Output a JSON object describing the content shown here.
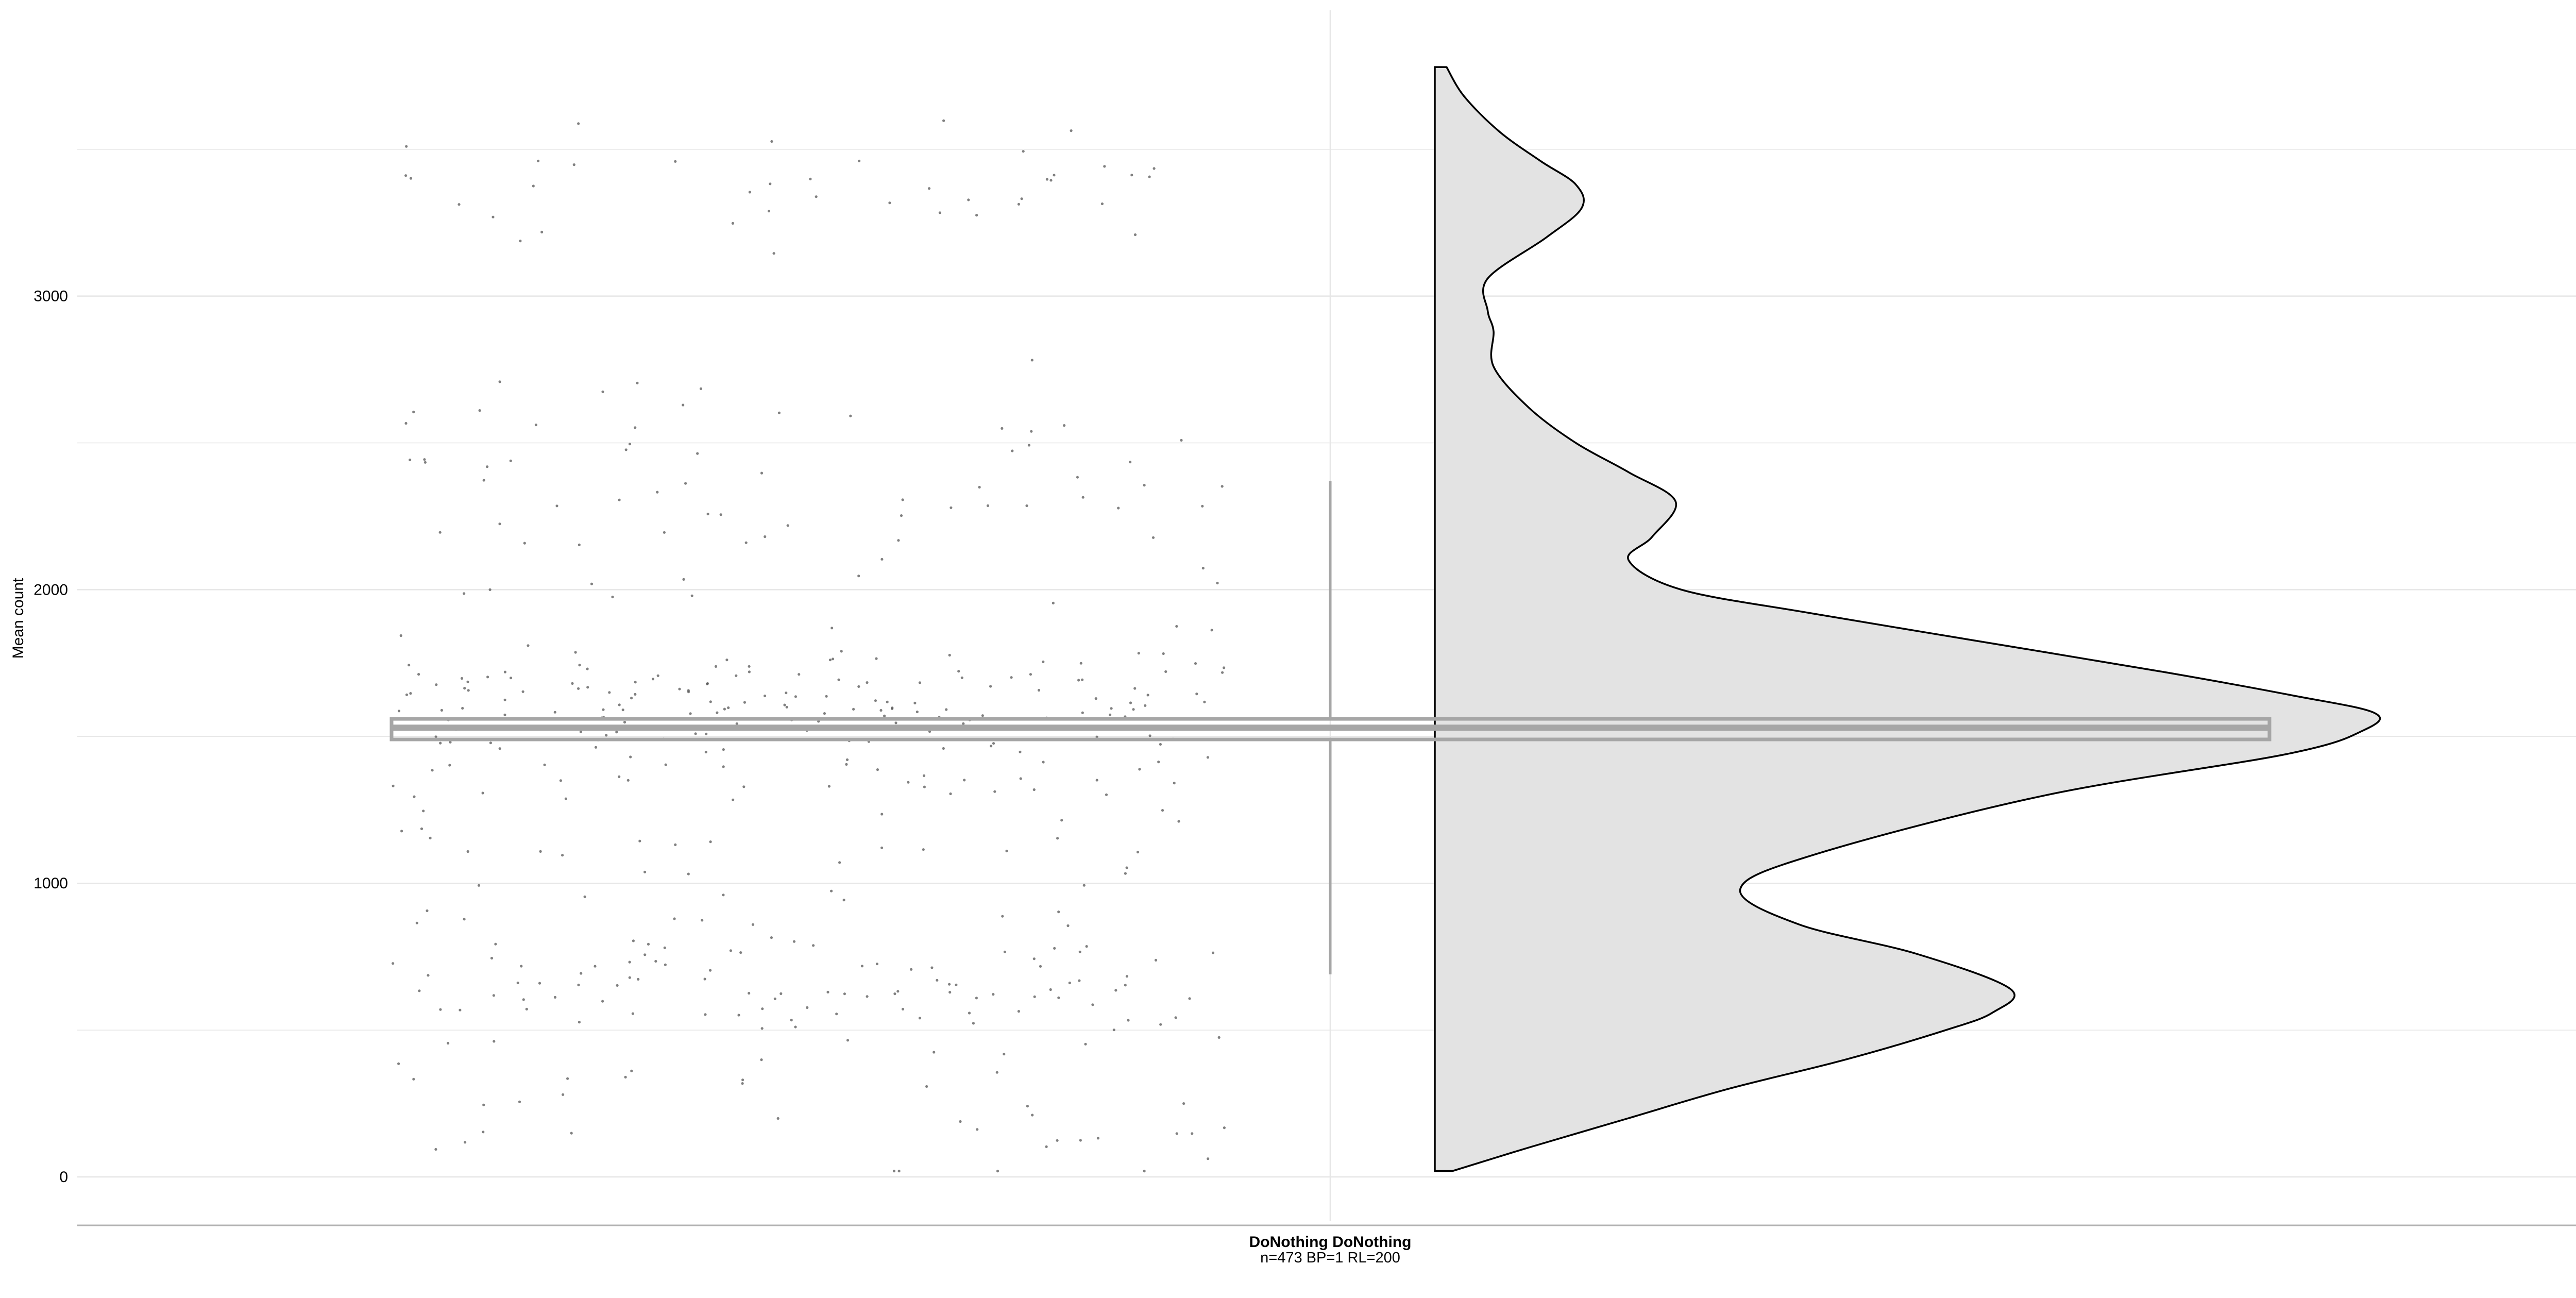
{
  "chart_data": {
    "type": "violin",
    "title": "",
    "xlabel": "",
    "ylabel": "Mean count",
    "ylim": [
      -170,
      3950
    ],
    "y_ticks": [
      0,
      1000,
      2000,
      3000
    ],
    "y_minor_ticks": [
      500,
      1500,
      2500,
      3500
    ],
    "category": {
      "name": "DoNothing DoNothing",
      "subtitle": "n=473 BP=1 RL=200"
    },
    "boxplot": {
      "q1": 1490,
      "median": 1530,
      "q3": 1560,
      "whisker_low": 690,
      "whisker_high": 2370
    },
    "density": {
      "y": [
        20,
        100,
        200,
        300,
        400,
        500,
        560,
        640,
        760,
        860,
        980,
        1100,
        1300,
        1440,
        1520,
        1580,
        1640,
        1720,
        1820,
        1920,
        2000,
        2100,
        2180,
        2300,
        2400,
        2500,
        2620,
        2760,
        2880,
        2950,
        3060,
        3200,
        3300,
        3380,
        3460,
        3560,
        3680,
        3780
      ],
      "width": [
        0.03,
        0.16,
        0.33,
        0.5,
        0.7,
        0.87,
        0.95,
        0.98,
        0.82,
        0.62,
        0.52,
        0.65,
        1.04,
        1.45,
        1.58,
        1.6,
        1.46,
        1.24,
        0.94,
        0.64,
        0.42,
        0.33,
        0.37,
        0.41,
        0.33,
        0.24,
        0.16,
        0.1,
        0.1,
        0.09,
        0.09,
        0.19,
        0.25,
        0.24,
        0.18,
        0.11,
        0.05,
        0.02
      ]
    },
    "points": {
      "count": 473,
      "clusters": [
        {
          "center": 1610,
          "spread": 110,
          "n": 150
        },
        {
          "center": 1330,
          "spread": 150,
          "n": 60
        },
        {
          "center": 650,
          "spread": 110,
          "n": 95
        },
        {
          "center": 2420,
          "spread": 170,
          "n": 55
        },
        {
          "center": 3370,
          "spread": 120,
          "n": 40
        },
        {
          "center": 250,
          "spread": 150,
          "n": 38
        },
        {
          "center": 950,
          "spread": 140,
          "n": 20
        },
        {
          "center": 2000,
          "spread": 160,
          "n": 15
        }
      ]
    },
    "colors": {
      "violin_fill": "#e3e3e3",
      "violin_stroke": "#000000",
      "box_stroke": "#a6a6a6",
      "point": "#555555",
      "grid": "#e6e6e6",
      "axis": "#b3b3b3"
    }
  }
}
